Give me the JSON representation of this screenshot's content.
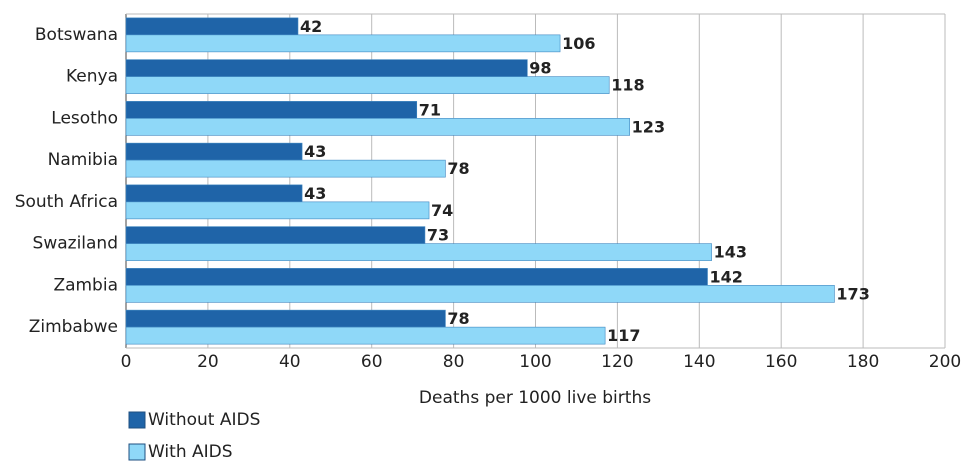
{
  "chart_data": {
    "type": "hbar",
    "x_label": "Deaths per 1000 live births",
    "categories": [
      "Botswana",
      "Kenya",
      "Lesotho",
      "Namibia",
      "South Africa",
      "Swaziland",
      "Zambia",
      "Zimbabwe"
    ],
    "series": [
      {
        "name": "Without AIDS",
        "color": "#1f64a8",
        "values": [
          42,
          98,
          71,
          43,
          43,
          73,
          142,
          78
        ]
      },
      {
        "name": "With AIDS",
        "color": "#8fd8f8",
        "values": [
          106,
          118,
          123,
          78,
          74,
          143,
          173,
          117
        ]
      }
    ],
    "xlim": [
      0,
      200
    ],
    "xticks": [
      0,
      20,
      40,
      60,
      80,
      100,
      120,
      140,
      160,
      180,
      200
    ],
    "grid": true
  }
}
